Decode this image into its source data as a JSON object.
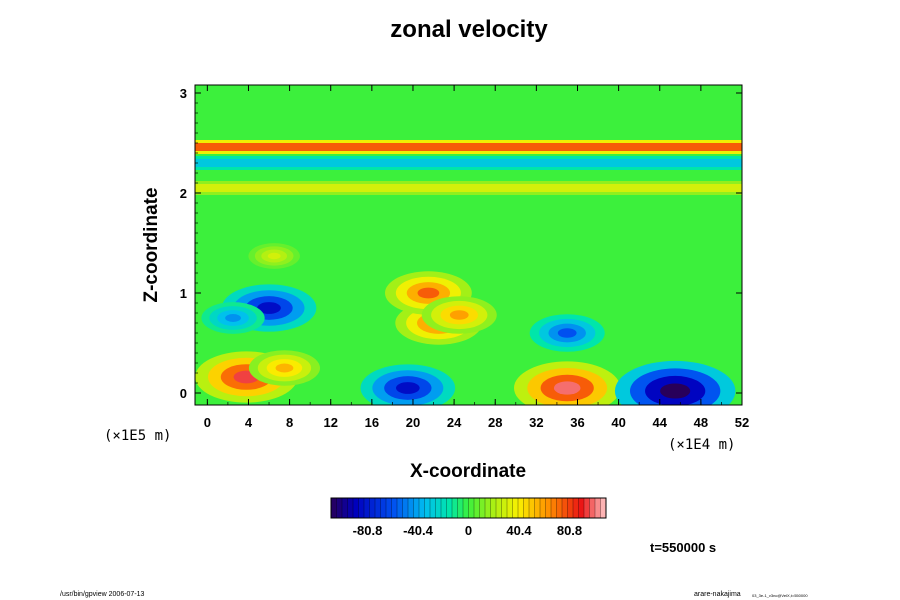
{
  "chart_data": {
    "type": "heatmap",
    "title": "zonal velocity",
    "xlabel": "X-coordinate",
    "ylabel": "Z-coordinate",
    "x_ticks": [
      "0",
      "4",
      "8",
      "12",
      "16",
      "20",
      "24",
      "28",
      "32",
      "36",
      "40",
      "44",
      "48",
      "52"
    ],
    "y_ticks": [
      "0",
      "1",
      "2",
      "3"
    ],
    "xlim": [
      -1.2,
      52
    ],
    "ylim": [
      -0.12,
      3.08
    ],
    "x_scale_note": "(×1E4 m)",
    "y_scale_note": "(×1E5 m)",
    "colorbar": {
      "tick_labels": [
        "-80.8",
        "-40.4",
        "0",
        "40.4",
        "80.8"
      ],
      "tick_values": [
        -80.8,
        -40.4,
        0,
        40.4,
        80.8
      ],
      "range": [
        -110,
        110
      ]
    },
    "features": [
      {
        "x": 6,
        "z": 0.85,
        "value": -85
      },
      {
        "x": 2.5,
        "z": 0.75,
        "value": -45
      },
      {
        "x": 35,
        "z": 0.6,
        "value": -60
      },
      {
        "x": 3.8,
        "z": 0.16,
        "value": 95
      },
      {
        "x": 7.5,
        "z": 0.25,
        "value": 55
      },
      {
        "x": 19.5,
        "z": 0.05,
        "value": -85
      },
      {
        "x": 35,
        "z": 0.05,
        "value": 100
      },
      {
        "x": 45.5,
        "z": 0.02,
        "value": -118
      },
      {
        "x": 22.5,
        "z": 0.7,
        "value": 75
      },
      {
        "x": 21.5,
        "z": 1.0,
        "value": 75
      },
      {
        "x": 24.5,
        "z": 0.78,
        "value": 60
      },
      {
        "x": 6.5,
        "z": 1.37,
        "value": 30
      }
    ],
    "bands": [
      {
        "z": 2.46,
        "value": 75
      },
      {
        "z": 2.3,
        "value": -30
      },
      {
        "z": 2.05,
        "value": 30
      }
    ],
    "time_label": "t=550000 s"
  },
  "footer": {
    "left": "/usr/bin/gpview 2006-07-13",
    "right_main": "arare-nakajima",
    "right_sub": "03_3e-1_v3nc@VelX,t=550000"
  }
}
